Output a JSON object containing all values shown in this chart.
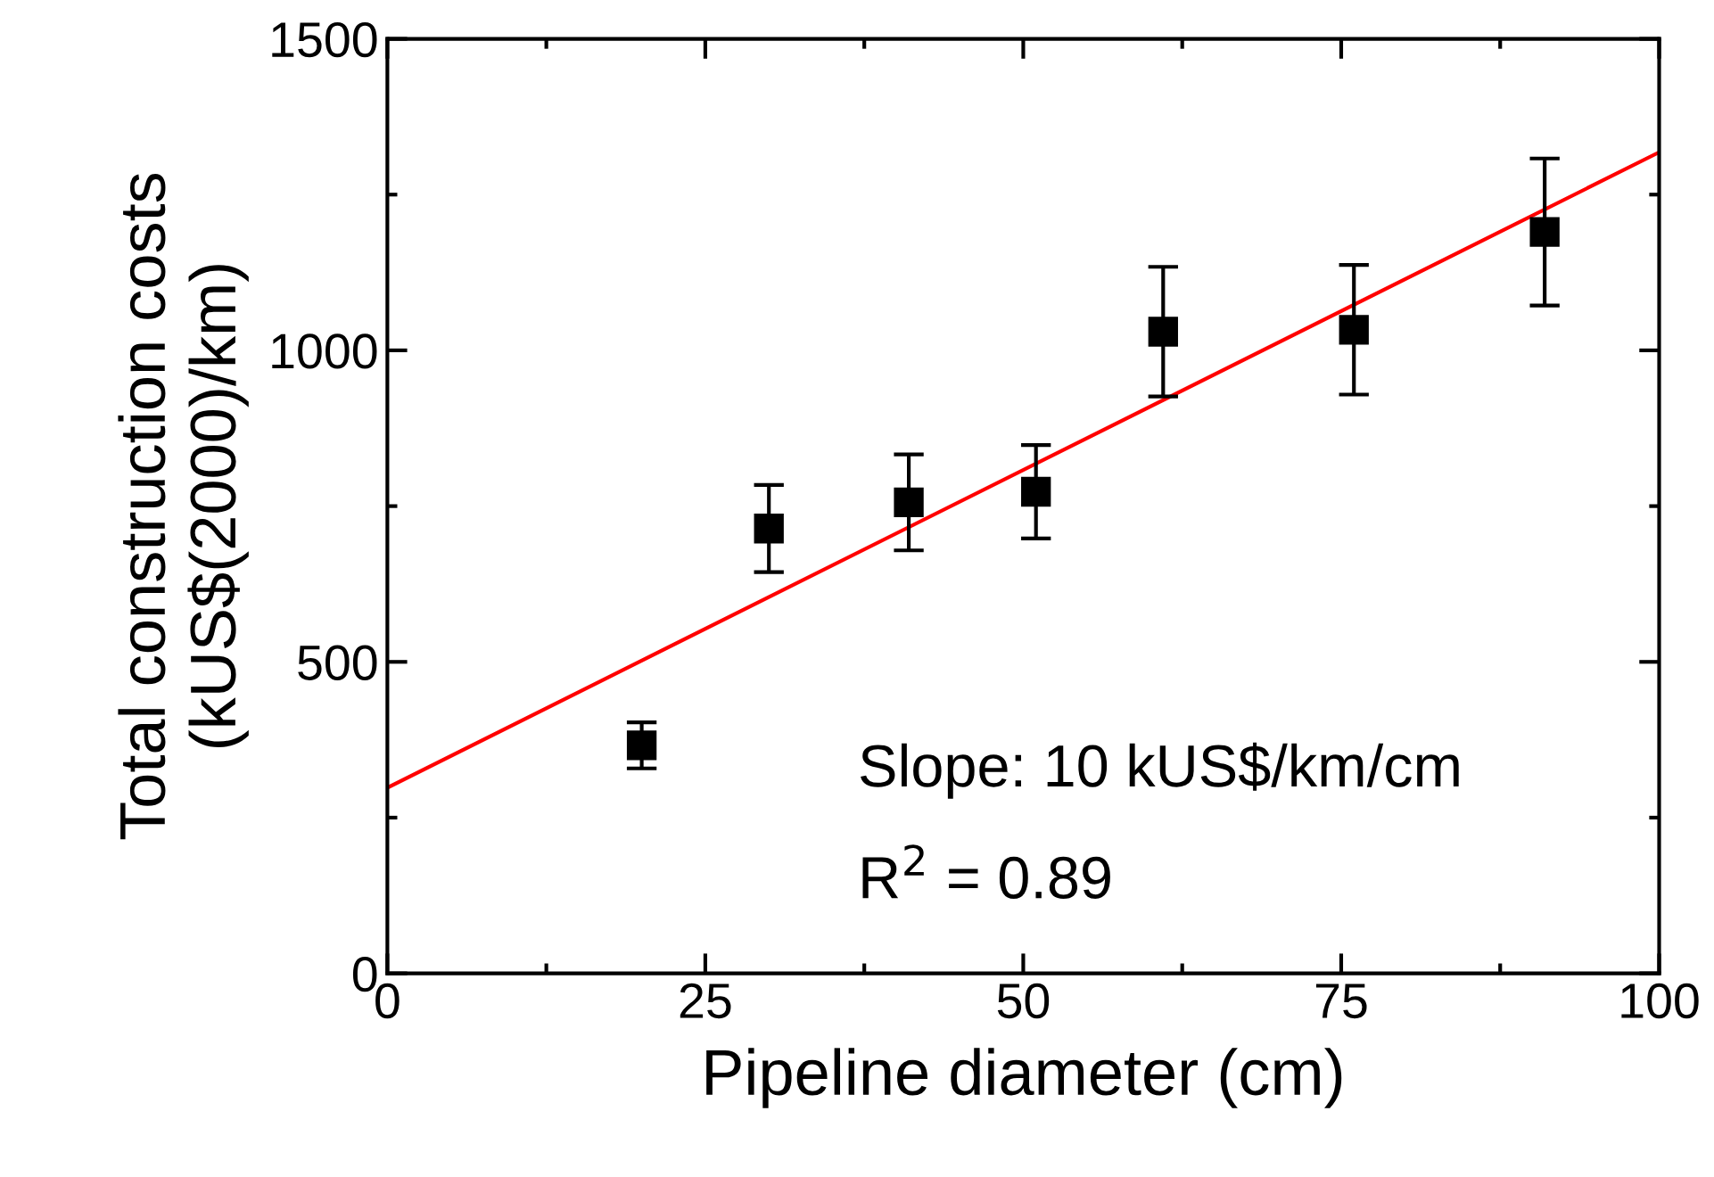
{
  "chart_data": {
    "type": "scatter",
    "xlabel": "Pipeline diameter (cm)",
    "ylabel": "Total construction costs\n(kUS$(2000)/km)",
    "xlim": [
      0,
      100
    ],
    "ylim": [
      0,
      1500
    ],
    "xticks": [
      0,
      25,
      50,
      75,
      100
    ],
    "yticks": [
      0,
      500,
      1000,
      1500
    ],
    "grid": false,
    "legend": false,
    "series": [
      {
        "color": "#000000",
        "marker": "square",
        "x": [
          20,
          30,
          41,
          51,
          61,
          76,
          91
        ],
        "values": [
          366,
          714,
          756,
          773,
          1030,
          1033,
          1190
        ],
        "errors": [
          37,
          70,
          77,
          75,
          104,
          104,
          118
        ]
      },
      {
        "type": "line",
        "color": "#ff0000",
        "marker": "none",
        "line_style": "solid",
        "x": [
          0,
          100
        ],
        "values": [
          298,
          1318
        ]
      }
    ],
    "annotations": [
      "Slope: 10 kUS$/km/cm",
      "R$^{2}$ = 0.89"
    ]
  }
}
